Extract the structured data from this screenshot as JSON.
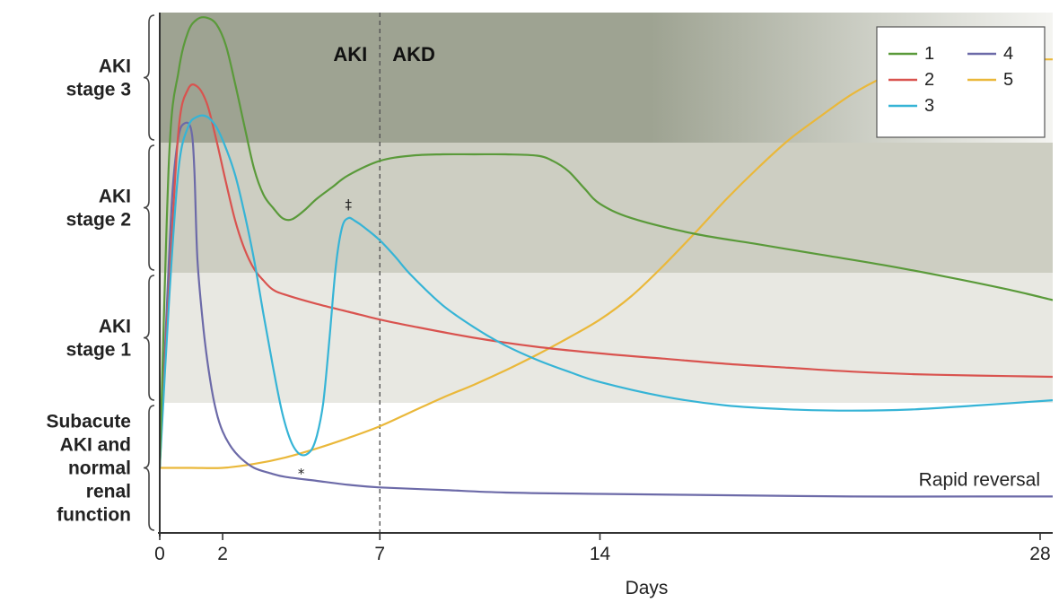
{
  "chart_data": {
    "type": "line",
    "title": "",
    "xlabel": "Days",
    "ylabel": "",
    "xlim": [
      0,
      28.4
    ],
    "ylim": [
      0,
      4
    ],
    "x_ticks": [
      0,
      2,
      7,
      14,
      28
    ],
    "phase_divider": {
      "x": 7,
      "left_label": "AKI",
      "right_label": "AKD"
    },
    "bands": [
      {
        "name": "AKI stage 3",
        "y_range": [
          3,
          4
        ],
        "color": "#9ea392",
        "color_fade": "#f4f4f1"
      },
      {
        "name": "AKI stage 2",
        "y_range": [
          2,
          3
        ],
        "color": "#cdcec2"
      },
      {
        "name": "AKI stage 1",
        "y_range": [
          1,
          2
        ],
        "color": "#e8e8e2"
      },
      {
        "name": "Subacute AKI and normal renal function",
        "y_range": [
          0,
          1
        ],
        "color": "#ffffff"
      }
    ],
    "stage_labels": [
      {
        "lines": [
          "AKI",
          "stage 3"
        ]
      },
      {
        "lines": [
          "AKI",
          "stage 2"
        ]
      },
      {
        "lines": [
          "AKI",
          "stage 1"
        ]
      },
      {
        "lines": [
          "Subacute",
          "AKI and",
          "normal",
          "renal",
          "function"
        ]
      }
    ],
    "series": [
      {
        "name": "1",
        "color": "#5a9a3a",
        "x": [
          0,
          0.3,
          0.6,
          0.9,
          1.2,
          1.5,
          1.8,
          2.1,
          2.4,
          2.7,
          3.0,
          3.3,
          3.6,
          3.9,
          4.2,
          4.6,
          5.0,
          5.5,
          6.0,
          7.0,
          8.0,
          9.0,
          10.0,
          11.0,
          12.0,
          12.5,
          13.0,
          13.5,
          14.0,
          15.0,
          17.0,
          19.0,
          21.0,
          23.0,
          25.0,
          27.0,
          28.4
        ],
        "values": [
          0.5,
          2.9,
          3.55,
          3.85,
          3.95,
          3.96,
          3.91,
          3.75,
          3.45,
          3.12,
          2.8,
          2.6,
          2.5,
          2.42,
          2.41,
          2.48,
          2.57,
          2.66,
          2.75,
          2.86,
          2.9,
          2.91,
          2.91,
          2.91,
          2.9,
          2.86,
          2.78,
          2.65,
          2.53,
          2.42,
          2.3,
          2.22,
          2.14,
          2.06,
          1.97,
          1.87,
          1.79
        ]
      },
      {
        "name": "2",
        "color": "#d9534f",
        "x": [
          0,
          0.3,
          0.6,
          0.9,
          1.2,
          1.5,
          1.8,
          2.1,
          2.4,
          2.7,
          3.0,
          3.3,
          3.6,
          4.0,
          5.0,
          6.0,
          7.0,
          8.0,
          10.0,
          12.0,
          14.0,
          16.0,
          18.0,
          20.0,
          22.0,
          24.0,
          26.0,
          28.4
        ],
        "values": [
          0.55,
          1.9,
          3.1,
          3.41,
          3.43,
          3.3,
          3.02,
          2.7,
          2.4,
          2.18,
          2.03,
          1.94,
          1.87,
          1.83,
          1.76,
          1.7,
          1.64,
          1.59,
          1.5,
          1.43,
          1.38,
          1.34,
          1.3,
          1.27,
          1.24,
          1.22,
          1.21,
          1.2
        ]
      },
      {
        "name": "3",
        "color": "#36b4d6",
        "x": [
          0,
          0.3,
          0.6,
          0.9,
          1.2,
          1.5,
          1.8,
          2.1,
          2.4,
          2.7,
          3.0,
          3.3,
          3.6,
          3.9,
          4.2,
          4.5,
          4.8,
          5.0,
          5.2,
          5.4,
          5.6,
          5.8,
          6.0,
          6.2,
          6.5,
          7.0,
          7.5,
          8.0,
          9.0,
          10.0,
          11.0,
          12.0,
          13.0,
          14.0,
          16.0,
          18.0,
          20.0,
          22.0,
          24.0,
          26.0,
          28.4
        ],
        "values": [
          0.5,
          1.8,
          2.8,
          3.12,
          3.2,
          3.2,
          3.12,
          2.96,
          2.75,
          2.45,
          2.1,
          1.68,
          1.28,
          0.92,
          0.69,
          0.6,
          0.63,
          0.75,
          1.0,
          1.5,
          2.05,
          2.35,
          2.42,
          2.4,
          2.35,
          2.25,
          2.12,
          1.98,
          1.75,
          1.58,
          1.44,
          1.33,
          1.24,
          1.16,
          1.05,
          0.98,
          0.95,
          0.94,
          0.95,
          0.98,
          1.02
        ]
      },
      {
        "name": "4",
        "color": "#6c6aa8",
        "x": [
          0,
          0.2,
          0.4,
          0.6,
          0.8,
          1.0,
          1.1,
          1.2,
          1.4,
          1.6,
          1.8,
          2.0,
          2.3,
          2.6,
          3.0,
          3.5,
          4.0,
          5.0,
          6.0,
          7.0,
          9.0,
          11.0,
          14.0,
          18.0,
          22.0,
          26.0,
          28.4
        ],
        "values": [
          0.5,
          1.6,
          2.6,
          3.05,
          3.15,
          3.1,
          2.8,
          2.1,
          1.55,
          1.18,
          0.93,
          0.78,
          0.65,
          0.57,
          0.5,
          0.46,
          0.43,
          0.4,
          0.37,
          0.35,
          0.33,
          0.31,
          0.3,
          0.29,
          0.28,
          0.28,
          0.28
        ]
      },
      {
        "name": "5",
        "color": "#eab83a",
        "x": [
          0,
          1.0,
          2.0,
          3.0,
          4.0,
          5.0,
          6.0,
          7.0,
          8.0,
          9.0,
          10.0,
          11.0,
          12.0,
          13.0,
          14.0,
          15.0,
          16.0,
          17.0,
          18.0,
          19.0,
          20.0,
          21.0,
          22.0,
          23.0,
          24.0,
          25.0,
          26.0,
          27.0,
          28.4
        ],
        "values": [
          0.5,
          0.5,
          0.5,
          0.53,
          0.58,
          0.65,
          0.73,
          0.82,
          0.93,
          1.04,
          1.14,
          1.25,
          1.37,
          1.5,
          1.64,
          1.82,
          2.05,
          2.3,
          2.56,
          2.8,
          3.02,
          3.2,
          3.37,
          3.5,
          3.59,
          3.63,
          3.64,
          3.64,
          3.64
        ]
      }
    ],
    "legend": {
      "position": "top-right",
      "columns": 2
    },
    "annotations": [
      {
        "text": "Rapid reversal",
        "x": 28.4,
        "y": 0.28,
        "align": "right"
      },
      {
        "text": "*",
        "x": 4.5,
        "y": 0.6,
        "kind": "marker-below"
      },
      {
        "text": "‡",
        "x": 6.0,
        "y": 2.42,
        "kind": "marker-above"
      }
    ]
  }
}
